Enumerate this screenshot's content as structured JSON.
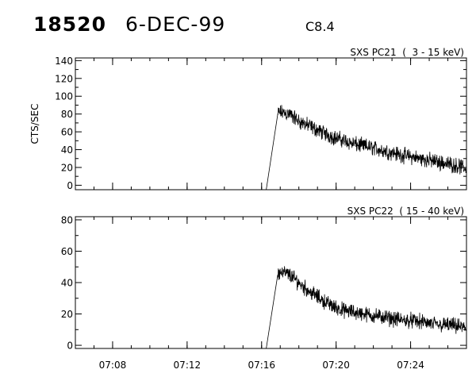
{
  "header": {
    "event_id": "18520",
    "date": "6-DEC-99",
    "flare_class": "C8.4"
  },
  "chart_data": [
    {
      "type": "line",
      "title": "SXS PC21  (  3 - 15 keV)",
      "ylabel": "CTS/SEC",
      "xlabel": "",
      "xlim": [
        "07:06:00",
        "07:27:00"
      ],
      "ylim": [
        -5,
        143
      ],
      "yticks": [
        0,
        20,
        40,
        60,
        80,
        100,
        120,
        140
      ],
      "xticks": [
        "07:08",
        "07:12",
        "07:16",
        "07:20",
        "07:24"
      ],
      "grid": false,
      "series": [
        {
          "x": [
            "07:16:15",
            "07:16:52",
            "07:17:00",
            "07:17:30",
            "07:18:00",
            "07:18:30",
            "07:19:00",
            "07:19:30",
            "07:20:00",
            "07:20:30",
            "07:21:00",
            "07:21:30",
            "07:22:00",
            "07:22:30",
            "07:23:00",
            "07:23:30",
            "07:24:00",
            "07:24:30",
            "07:25:00",
            "07:25:30",
            "07:26:00",
            "07:26:30",
            "07:26:58"
          ],
          "y": [
            -5,
            80,
            82,
            80,
            72,
            67,
            62,
            57,
            53,
            50,
            46,
            44,
            42,
            39,
            37,
            34,
            32,
            30,
            28,
            26,
            24,
            22,
            19
          ]
        }
      ]
    },
    {
      "type": "line",
      "title": "SXS PC22  ( 15 - 40 keV)",
      "ylabel": "",
      "xlabel": "",
      "xlim": [
        "07:06:00",
        "07:27:00"
      ],
      "ylim": [
        -2,
        82
      ],
      "yticks": [
        0,
        20,
        40,
        60,
        80
      ],
      "xticks": [
        "07:08",
        "07:12",
        "07:16",
        "07:20",
        "07:24"
      ],
      "grid": false,
      "series": [
        {
          "x": [
            "07:16:15",
            "07:16:52",
            "07:17:00",
            "07:17:30",
            "07:18:00",
            "07:18:30",
            "07:19:00",
            "07:19:30",
            "07:20:00",
            "07:20:30",
            "07:21:00",
            "07:21:30",
            "07:22:00",
            "07:22:30",
            "07:23:00",
            "07:23:30",
            "07:24:00",
            "07:24:30",
            "07:25:00",
            "07:25:30",
            "07:26:00",
            "07:26:30",
            "07:26:58"
          ],
          "y": [
            -2,
            45,
            47,
            45,
            40,
            35,
            31,
            27,
            24,
            22,
            21,
            20,
            19,
            18,
            17,
            16,
            16,
            15,
            14,
            13,
            13,
            12,
            11
          ]
        }
      ]
    }
  ]
}
